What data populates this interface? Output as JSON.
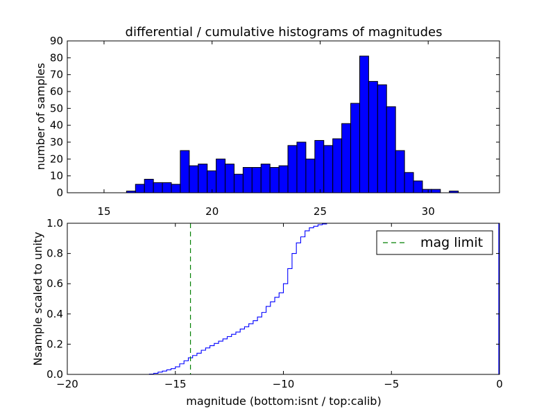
{
  "chart_data": [
    {
      "type": "bar",
      "title": "differential / cumulative histograms of magnitudes",
      "xlabel": "",
      "ylabel": "number of samples",
      "xlim": [
        13.3,
        33.3
      ],
      "ylim": [
        0,
        90
      ],
      "xticks": [
        "15",
        "20",
        "25",
        "30"
      ],
      "xtick_values": [
        15,
        20,
        25,
        30
      ],
      "yticks": [
        "0",
        "10",
        "20",
        "30",
        "40",
        "50",
        "60",
        "70",
        "80",
        "90"
      ],
      "ytick_values": [
        0,
        10,
        20,
        30,
        40,
        50,
        60,
        70,
        80,
        90
      ],
      "bar_color": "#0000ff",
      "bin_start": 16.04,
      "bin_width": 0.415,
      "values": [
        1,
        5,
        8,
        6,
        6,
        5,
        25,
        16,
        17,
        13,
        20,
        17,
        11,
        15,
        15,
        17,
        15,
        16,
        28,
        30,
        20,
        31,
        28,
        32,
        41,
        53,
        81,
        66,
        64,
        51,
        25,
        12,
        7,
        2,
        2,
        0,
        1
      ]
    },
    {
      "type": "line",
      "title": "",
      "xlabel": "magnitude (bottom:isnt / top:calib)",
      "ylabel": "Nsample scaled to unity",
      "xlim": [
        -20,
        0
      ],
      "ylim": [
        0,
        1
      ],
      "xticks": [
        "−20",
        "−15",
        "−10",
        "−5",
        "0"
      ],
      "xtick_values": [
        -20,
        -15,
        -10,
        -5,
        0
      ],
      "yticks": [
        "0.0",
        "0.2",
        "0.4",
        "0.6",
        "0.8",
        "1.0"
      ],
      "ytick_values": [
        0,
        0.2,
        0.4,
        0.6,
        0.8,
        1.0
      ],
      "line_color": "#0000ff",
      "limit_color": "#008000",
      "legend": {
        "label": "mag limit",
        "position": "top-right"
      },
      "mag_limit": -14.3,
      "series": {
        "name": "cumulative",
        "x": [
          -20,
          -16.4,
          -16.2,
          -16.0,
          -15.8,
          -15.6,
          -15.4,
          -15.2,
          -15.0,
          -14.8,
          -14.6,
          -14.4,
          -14.2,
          -14.0,
          -13.8,
          -13.6,
          -13.4,
          -13.2,
          -13.0,
          -12.8,
          -12.6,
          -12.4,
          -12.2,
          -12.0,
          -11.8,
          -11.6,
          -11.4,
          -11.2,
          -11.0,
          -10.8,
          -10.6,
          -10.4,
          -10.2,
          -10.0,
          -9.8,
          -9.6,
          -9.4,
          -9.2,
          -9.0,
          -8.8,
          -8.6,
          -8.4,
          -8.2,
          -8.0,
          -7.8,
          0
        ],
        "y": [
          0.0,
          0.0,
          0.002,
          0.007,
          0.015,
          0.022,
          0.03,
          0.038,
          0.05,
          0.07,
          0.09,
          0.11,
          0.125,
          0.14,
          0.16,
          0.175,
          0.19,
          0.205,
          0.22,
          0.235,
          0.25,
          0.265,
          0.28,
          0.3,
          0.315,
          0.335,
          0.355,
          0.38,
          0.41,
          0.45,
          0.48,
          0.51,
          0.54,
          0.6,
          0.7,
          0.8,
          0.87,
          0.91,
          0.95,
          0.97,
          0.98,
          0.99,
          0.995,
          1.0,
          1.0,
          1.0
        ]
      }
    }
  ]
}
